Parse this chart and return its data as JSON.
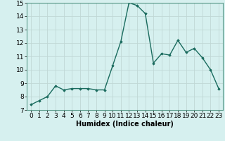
{
  "x": [
    0,
    1,
    2,
    3,
    4,
    5,
    6,
    7,
    8,
    9,
    10,
    11,
    12,
    13,
    14,
    15,
    16,
    17,
    18,
    19,
    20,
    21,
    22,
    23
  ],
  "y": [
    7.4,
    7.7,
    8.0,
    8.8,
    8.5,
    8.6,
    8.6,
    8.6,
    8.5,
    8.5,
    10.3,
    12.1,
    15.0,
    14.8,
    14.2,
    10.5,
    11.2,
    11.1,
    12.2,
    11.3,
    11.6,
    10.9,
    10.0,
    8.6
  ],
  "line_color": "#1a6b5e",
  "marker": "D",
  "marker_size": 1.8,
  "bg_color": "#d6f0ef",
  "grid_color": "#c0d8d5",
  "xlabel": "Humidex (Indice chaleur)",
  "xlabel_fontsize": 7,
  "tick_fontsize": 6.5,
  "ylim": [
    7,
    15
  ],
  "xlim": [
    -0.5,
    23.5
  ],
  "yticks": [
    7,
    8,
    9,
    10,
    11,
    12,
    13,
    14,
    15
  ],
  "xticks": [
    0,
    1,
    2,
    3,
    4,
    5,
    6,
    7,
    8,
    9,
    10,
    11,
    12,
    13,
    14,
    15,
    16,
    17,
    18,
    19,
    20,
    21,
    22,
    23
  ],
  "linewidth": 1.0
}
